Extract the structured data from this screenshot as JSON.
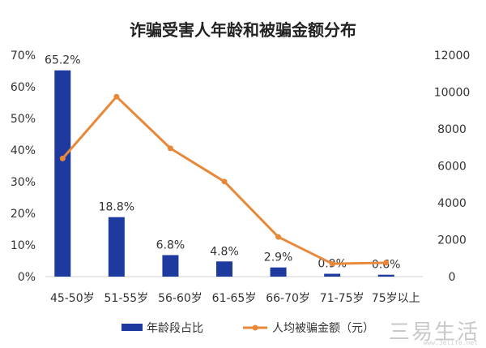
{
  "chart_data": {
    "type": "bar",
    "title": "诈骗受害人年龄和被骗金额分布",
    "categories": [
      "45-50岁",
      "51-55岁",
      "56-60岁",
      "61-65岁",
      "66-70岁",
      "71-75岁",
      "75岁以上"
    ],
    "series": [
      {
        "name": "年龄段占比",
        "type": "bar",
        "axis": "left",
        "color": "#1f3a9e",
        "values": [
          65.2,
          18.8,
          6.8,
          4.8,
          2.9,
          0.9,
          0.6
        ],
        "labels": [
          "65.2%",
          "18.8%",
          "6.8%",
          "4.8%",
          "2.9%",
          "0.9%",
          "0.6%"
        ]
      },
      {
        "name": "人均被骗金额（元）",
        "type": "line",
        "axis": "right",
        "color": "#e8893a",
        "values": [
          6400,
          9750,
          6950,
          5150,
          2150,
          700,
          750
        ]
      }
    ],
    "y_left": {
      "min": 0,
      "max": 70,
      "ticks": [
        "0%",
        "10%",
        "20%",
        "30%",
        "40%",
        "50%",
        "60%",
        "70%"
      ]
    },
    "y_right": {
      "min": 0,
      "max": 12000,
      "ticks": [
        "0",
        "2000",
        "4000",
        "6000",
        "8000",
        "10000",
        "12000"
      ]
    },
    "legend_position": "bottom",
    "grid": false
  },
  "watermark": {
    "main": "三易生活",
    "sub": "www.3elife.net"
  }
}
